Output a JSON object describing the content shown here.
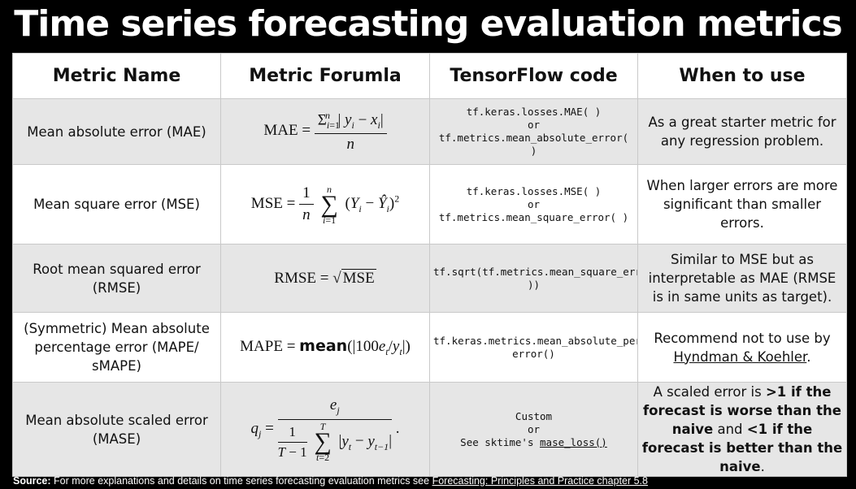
{
  "title": "Time series forecasting evaluation metrics",
  "headers": {
    "name": "Metric Name",
    "formula": "Metric Forumla",
    "code": "TensorFlow code",
    "when": "When to use"
  },
  "rows": [
    {
      "name": "Mean absolute error (MAE)",
      "formula": "MAE = Σ_{i=1}^{n} |y_i − x_i| / n",
      "code": "tf.keras.losses.MAE( )\nor\ntf.metrics.mean_absolute_error( )",
      "when": "As a great starter metric for any regression problem."
    },
    {
      "name": "Mean square error (MSE)",
      "formula": "MSE = 1/n Σ_{i=1}^{n} (Y_i − Ŷ_i)^2",
      "code": "tf.keras.losses.MSE( )\nor\ntf.metrics.mean_square_error( )",
      "when": "When larger errors are more significant than smaller errors."
    },
    {
      "name": "Root mean squared error (RMSE)",
      "formula": "RMSE = √MSE",
      "code": "tf.sqrt(tf.metrics.mean_square_error( ))",
      "when": "Similar to MSE but as interpretable as MAE (RMSE is in same units as target)."
    },
    {
      "name": "(Symmetric) Mean absolute percentage error (MAPE/ sMAPE)",
      "formula": "MAPE = mean(|100e_t/y_t|)",
      "code": "tf.keras.metrics.mean_absolute_percentage_\nerror()",
      "when_prefix": "Recommend not to use by",
      "when_link": "Hyndman & Koehler",
      "when_suffix": "."
    },
    {
      "name": "Mean absolute scaled error (MASE)",
      "formula": "q_j = e_j / (1/(T−1) Σ_{t=2}^{T} |y_t − y_{t−1}|)",
      "code_line1": "Custom",
      "code_line2": "or",
      "code_prefix": "See sktime's",
      "code_link": "mase_loss()",
      "when_p1": "A scaled error is",
      "when_b1": ">1 if the forecast is worse than the naive",
      "when_p2": "and",
      "when_b2": "<1 if the forecast is better than the naive",
      "when_p3": "."
    }
  ],
  "source": {
    "label": "Source:",
    "text": "For more explanations and details on time series forecasting evaluation metrics see",
    "link": "Forecasting: Principles and Practice chapter 5.8"
  },
  "colors": {
    "background": "#000000",
    "title": "#ffffff",
    "row_shaded": "#e6e6e6",
    "row_white": "#ffffff"
  }
}
